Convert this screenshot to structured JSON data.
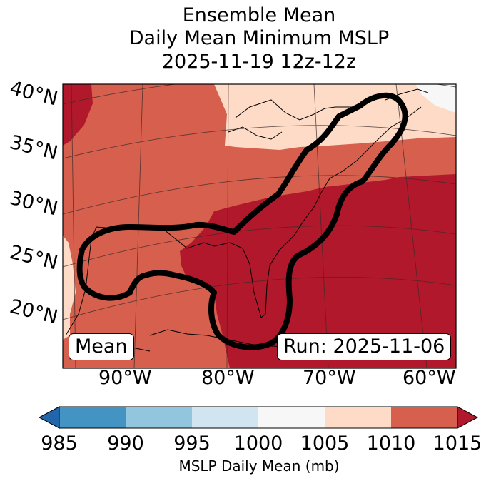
{
  "title": {
    "line1": "Ensemble Mean",
    "line2": "Daily Mean Minimum MSLP",
    "line3": "2025-11-19 12z-12z"
  },
  "map": {
    "lat_labels": [
      "40°N",
      "35°N",
      "30°N",
      "25°N",
      "20°N"
    ],
    "lon_labels": [
      "90°W",
      "80°W",
      "70°W",
      "60°W"
    ],
    "mean_label": "Mean",
    "run_label": "Run: 2025-11-06"
  },
  "colorbar": {
    "ticks": [
      "985",
      "990",
      "995",
      "1000",
      "1005",
      "1010",
      "1015"
    ],
    "label": "MSLP Daily Mean (mb)",
    "colors": [
      "#4393c3",
      "#92c5de",
      "#d1e5f0",
      "#f7f7f7",
      "#fddbc7",
      "#d6604d",
      "#b2182b",
      "#2166ac"
    ]
  }
}
